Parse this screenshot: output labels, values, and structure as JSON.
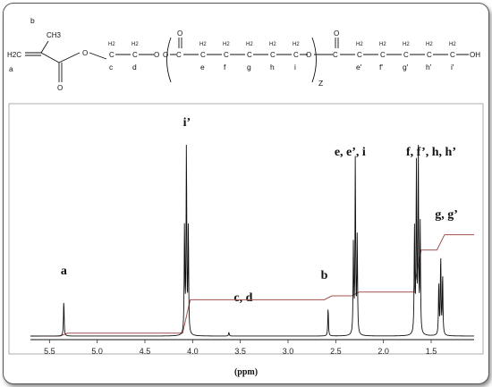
{
  "structure": {
    "atoms": {
      "h2c": "H2C",
      "ch3": "CH3",
      "h2": "H2",
      "o": "O",
      "oh": "OH",
      "c": "C",
      "z": "Z"
    },
    "carbon_labels": [
      "b",
      "a",
      "c",
      "d",
      "e",
      "f",
      "g",
      "h",
      "i",
      "e'",
      "f'",
      "g'",
      "h'",
      "i'"
    ]
  },
  "chart_data": {
    "type": "line",
    "title": "",
    "xlabel": "(ppm)",
    "ylabel": "",
    "xlim": [
      5.7,
      1.05
    ],
    "x_reversed": true,
    "xticks": [
      5.5,
      5.0,
      4.5,
      4.0,
      3.5,
      3.0,
      2.5,
      2.0,
      1.5
    ],
    "xtick_labels": [
      "5.5",
      "5.0",
      "4.5",
      "4.0",
      "3.5",
      "3.0",
      "2.5",
      "2.0",
      "1.5"
    ],
    "series": [
      {
        "kind": "spectrum",
        "color": "#111111",
        "baseline": 0,
        "ymax": 100,
        "peaks": [
          {
            "x": 5.35,
            "h": 19
          },
          {
            "x": 4.085,
            "h": 57
          },
          {
            "x": 4.065,
            "h": 100
          },
          {
            "x": 4.045,
            "h": 57
          },
          {
            "x": 3.62,
            "h": 2
          },
          {
            "x": 2.58,
            "h": 15
          },
          {
            "x": 2.315,
            "h": 47
          },
          {
            "x": 2.295,
            "h": 92
          },
          {
            "x": 2.275,
            "h": 51
          },
          {
            "x": 1.675,
            "h": 55
          },
          {
            "x": 1.655,
            "h": 88
          },
          {
            "x": 1.635,
            "h": 95
          },
          {
            "x": 1.615,
            "h": 57
          },
          {
            "x": 1.42,
            "h": 28
          },
          {
            "x": 1.4,
            "h": 42
          },
          {
            "x": 1.38,
            "h": 32
          }
        ]
      },
      {
        "kind": "integral",
        "color": "#a05050",
        "steps": [
          {
            "x": 5.35,
            "level": 1.5
          },
          {
            "x": 4.065,
            "level": 19
          },
          {
            "x": 2.58,
            "level": 21
          },
          {
            "x": 2.295,
            "level": 23
          },
          {
            "x": 1.645,
            "level": 45
          },
          {
            "x": 1.4,
            "level": 53
          }
        ]
      }
    ],
    "annotations": [
      {
        "text": "a",
        "x": 5.35
      },
      {
        "text": "i’",
        "x": 4.06
      },
      {
        "text": "c, d",
        "x": 3.47
      },
      {
        "text": "b",
        "x": 2.62
      },
      {
        "text": "e, e’, i",
        "x": 2.35
      },
      {
        "text": "f,  f’, h, h’",
        "x": 1.5
      },
      {
        "text": "g, g’",
        "x": 1.34
      }
    ]
  }
}
